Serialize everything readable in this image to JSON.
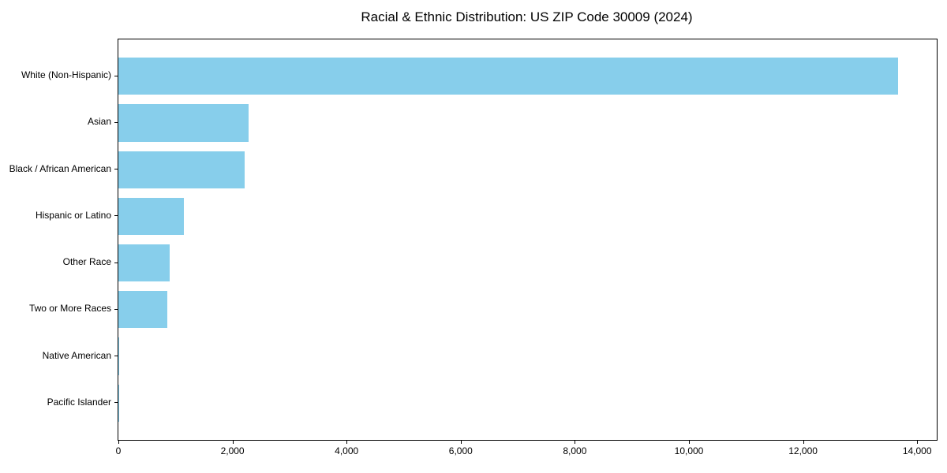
{
  "chart_data": {
    "type": "bar",
    "orientation": "horizontal",
    "title": "Racial & Ethnic Distribution: US ZIP Code 30009 (2024)",
    "categories": [
      "White (Non-Hispanic)",
      "Asian",
      "Black / African American",
      "Hispanic or Latino",
      "Other Race",
      "Two or More Races",
      "Native American",
      "Pacific Islander"
    ],
    "values": [
      13660,
      2280,
      2215,
      1150,
      900,
      860,
      20,
      5
    ],
    "xlabel": "",
    "ylabel": "",
    "xlim": [
      0,
      14343
    ],
    "xticks": [
      0,
      2000,
      4000,
      6000,
      8000,
      10000,
      12000,
      14000
    ],
    "xtick_labels": [
      "0",
      "2,000",
      "4,000",
      "6,000",
      "8,000",
      "10,000",
      "12,000",
      "14,000"
    ],
    "bar_color": "#87ceeb",
    "axis_color": "#000000",
    "text_color": "#000000",
    "grid": false,
    "legend": "none"
  }
}
